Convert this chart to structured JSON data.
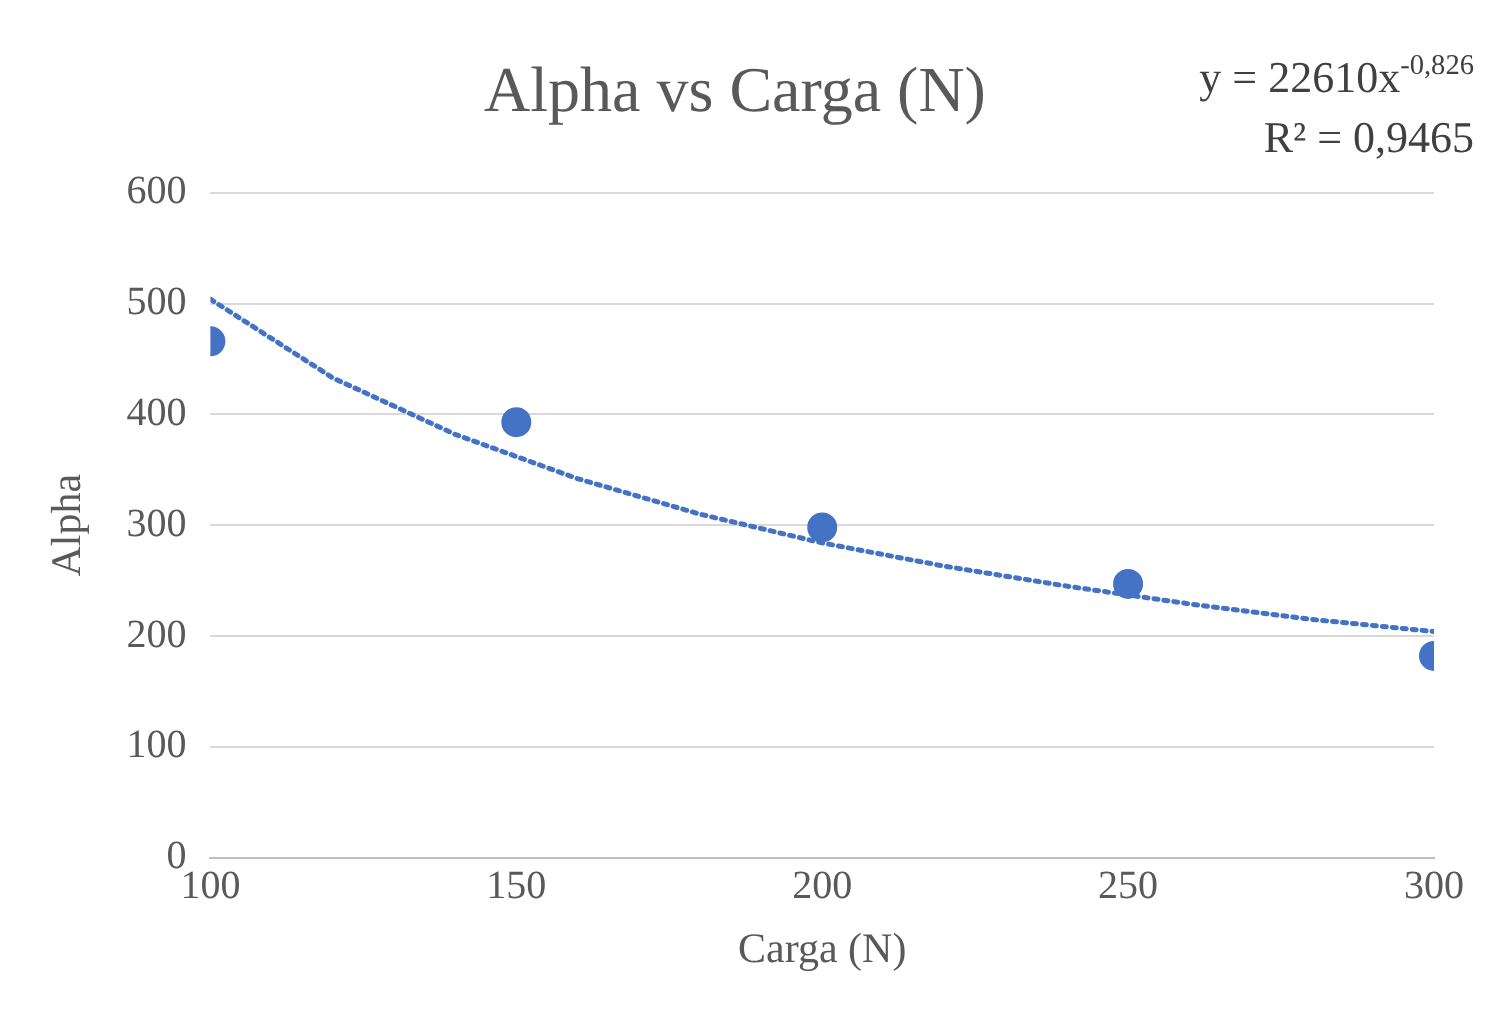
{
  "chart_data": {
    "type": "scatter",
    "title": "Alpha vs Carga (N)",
    "xlabel": "Carga (N)",
    "ylabel": "Alpha",
    "annotations": [
      "y = 22610x$^{-0,826}$",
      "R² = 0,9465"
    ],
    "series": [
      {
        "color": "#4472c4",
        "x": [
          100,
          150,
          200,
          250,
          300
        ],
        "values": [
          466,
          393,
          298,
          247,
          182
        ],
        "marker": "circle"
      },
      {
        "type": "line",
        "color": "#4472c4",
        "x": [
          100,
          120,
          140,
          160,
          180,
          200,
          220,
          240,
          260,
          280,
          300
        ],
        "values": [
          504,
          433,
          382,
          342,
          310,
          284,
          263,
          245,
          229,
          215,
          204
        ],
        "marker": "none",
        "line_style": "dotted"
      }
    ],
    "xlim": [
      100,
      300
    ],
    "xticks": [
      100,
      150,
      200,
      250,
      300
    ],
    "ylim": [
      0,
      600
    ],
    "yticks": [
      0,
      100,
      200,
      300,
      400,
      500,
      600
    ],
    "grid": "y"
  }
}
